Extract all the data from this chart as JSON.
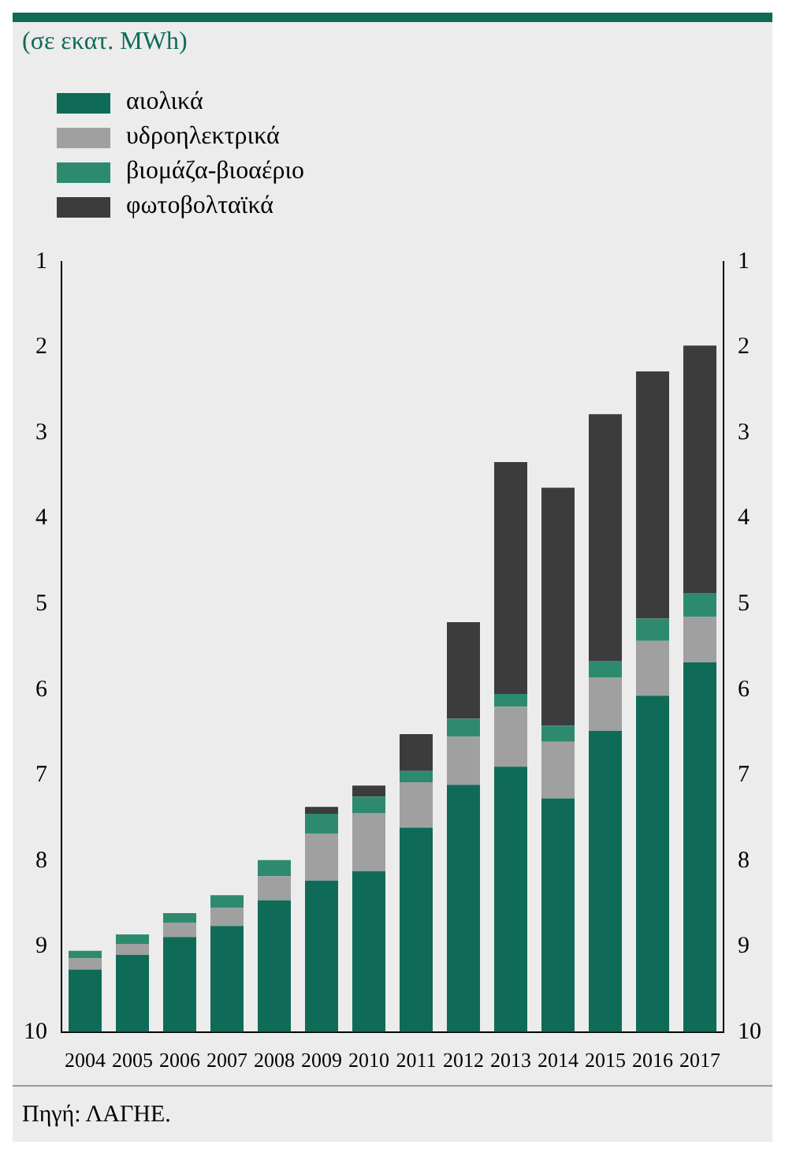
{
  "chart_data": {
    "type": "bar",
    "subtitle": "(σε εκατ. MWh)",
    "categories": [
      "2004",
      "2005",
      "2006",
      "2007",
      "2008",
      "2009",
      "2010",
      "2011",
      "2012",
      "2013",
      "2014",
      "2015",
      "2016",
      "2017"
    ],
    "series": [
      {
        "name": "αιολικά",
        "color": "#0f6b58",
        "base": [
          10,
          10,
          10,
          10,
          10,
          10,
          10,
          10,
          10,
          10,
          10,
          10,
          10,
          10
        ],
        "values": [
          -0.73,
          -0.9,
          -1.11,
          -1.24,
          -1.54,
          -1.77,
          -1.88,
          -2.39,
          -2.89,
          -3.1,
          -2.73,
          -3.52,
          -3.93,
          -4.32
        ]
      },
      {
        "name": "υδροηλεκτρικά",
        "color": "#a0a0a0",
        "base": [
          9.27,
          9.1,
          8.89,
          8.76,
          8.46,
          8.23,
          8.12,
          7.61,
          7.11,
          6.9,
          7.27,
          6.48,
          6.07,
          5.68
        ],
        "values": [
          -0.13,
          -0.13,
          -0.17,
          -0.21,
          -0.28,
          -0.55,
          -0.68,
          -0.53,
          -0.56,
          -0.7,
          -0.66,
          -0.62,
          -0.64,
          -0.53
        ]
      },
      {
        "name": "βιομάζα-βιοαέριο",
        "color": "#2e8a6f",
        "base": [
          9.14,
          8.97,
          8.72,
          8.55,
          8.18,
          7.68,
          7.44,
          7.08,
          6.55,
          6.2,
          6.61,
          5.86,
          5.43,
          5.15
        ],
        "values": [
          -0.09,
          -0.11,
          -0.11,
          -0.15,
          -0.19,
          -0.23,
          -0.19,
          -0.13,
          -0.21,
          -0.15,
          -0.19,
          -0.19,
          -0.26,
          -0.28
        ]
      },
      {
        "name": "φωτοβολταϊκά",
        "color": "#3c3c3c",
        "base": [
          null,
          null,
          null,
          null,
          null,
          7.45,
          7.25,
          6.95,
          6.34,
          6.05,
          6.42,
          5.67,
          5.17,
          4.87
        ],
        "values": [
          null,
          null,
          null,
          null,
          null,
          -0.08,
          -0.13,
          -0.43,
          -1.13,
          -2.71,
          -2.78,
          -2.89,
          -2.89,
          -2.89
        ]
      }
    ],
    "ylim": [
      10,
      1
    ],
    "yticks": [
      1,
      2,
      3,
      4,
      5,
      6,
      7,
      8,
      9,
      10
    ],
    "y2lim": [
      10,
      1
    ],
    "y2ticks": [
      1,
      2,
      3,
      4,
      5,
      6,
      7,
      8,
      9,
      10
    ],
    "grid": false,
    "legend": "top left",
    "annotations": [
      "Πηγή: ΛΑΓΗΕ."
    ]
  }
}
